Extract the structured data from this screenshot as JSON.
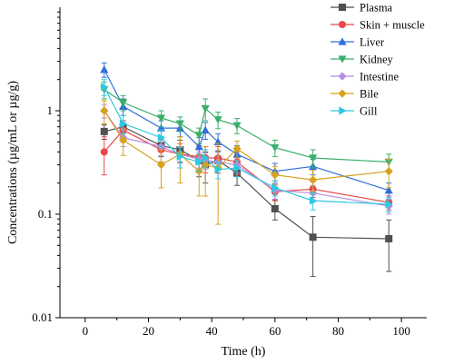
{
  "chart_data": {
    "type": "line",
    "title": "",
    "xlabel": "Time (h)",
    "ylabel": "Concentrations (µg/mL or µg/g)",
    "xlim": [
      -8,
      108
    ],
    "ylim": [
      0.01,
      10
    ],
    "yscale": "log",
    "x_ticks": [
      0,
      20,
      40,
      60,
      80,
      100
    ],
    "x_tick_labels": [
      "0",
      "20",
      "40",
      "60",
      "80",
      "100"
    ],
    "y_ticks": [
      0.01,
      0.1,
      1
    ],
    "y_tick_labels": [
      "0.01",
      "0.1",
      "1"
    ],
    "grid": false,
    "legend_position": "top-right",
    "series": [
      {
        "name": "Plasma",
        "color": "#505050",
        "marker": "square",
        "x": [
          6,
          12,
          24,
          30,
          36,
          38,
          42,
          48,
          60,
          72,
          96
        ],
        "y": [
          0.63,
          0.7,
          0.46,
          0.42,
          0.33,
          0.3,
          0.33,
          0.25,
          0.113,
          0.06,
          0.058
        ],
        "err": [
          0.1,
          0.1,
          0.1,
          0.1,
          0.1,
          0.1,
          0.08,
          0.06,
          0.025,
          0.035,
          0.03
        ]
      },
      {
        "name": "Skin + muscle",
        "color": "#e8484a",
        "marker": "circle",
        "x": [
          6,
          12,
          24,
          30,
          36,
          38,
          42,
          48,
          60,
          72,
          96
        ],
        "y": [
          0.4,
          0.65,
          0.42,
          0.38,
          0.36,
          0.35,
          0.35,
          0.32,
          0.165,
          0.175,
          0.13
        ],
        "err": [
          0.16,
          0.15,
          0.1,
          0.1,
          0.1,
          0.1,
          0.1,
          0.08,
          0.03,
          0.03,
          0.02
        ]
      },
      {
        "name": "Liver",
        "color": "#2f6fdd",
        "marker": "triangle-up",
        "x": [
          6,
          12,
          24,
          30,
          36,
          38,
          42,
          48,
          60,
          72,
          96
        ],
        "y": [
          2.5,
          1.1,
          0.68,
          0.68,
          0.45,
          0.65,
          0.5,
          0.38,
          0.26,
          0.29,
          0.17
        ],
        "err": [
          0.4,
          0.2,
          0.12,
          0.12,
          0.1,
          0.12,
          0.1,
          0.08,
          0.05,
          0.05,
          0.03
        ]
      },
      {
        "name": "Kidney",
        "color": "#3aaf6a",
        "marker": "triangle-down",
        "x": [
          6,
          12,
          24,
          30,
          36,
          38,
          42,
          48,
          60,
          72,
          96
        ],
        "y": [
          1.6,
          1.2,
          0.85,
          0.75,
          0.58,
          1.05,
          0.82,
          0.72,
          0.44,
          0.35,
          0.32
        ],
        "err": [
          0.3,
          0.2,
          0.15,
          0.12,
          0.1,
          0.25,
          0.15,
          0.12,
          0.08,
          0.07,
          0.06
        ]
      },
      {
        "name": "Intestine",
        "color": "#b98ee0",
        "marker": "diamond",
        "x": [
          6,
          12,
          24,
          30,
          36,
          38,
          42,
          48,
          60,
          72,
          96
        ],
        "y": [
          1.0,
          0.55,
          0.45,
          0.38,
          0.34,
          0.33,
          0.32,
          0.3,
          0.17,
          0.16,
          0.12
        ],
        "err": [
          0.15,
          0.1,
          0.08,
          0.07,
          0.06,
          0.06,
          0.05,
          0.05,
          0.03,
          0.03,
          0.02
        ]
      },
      {
        "name": "Bile",
        "color": "#d6a21e",
        "marker": "diamond",
        "x": [
          6,
          12,
          24,
          30,
          36,
          38,
          42,
          48,
          60,
          72,
          96
        ],
        "y": [
          1.0,
          0.52,
          0.3,
          0.38,
          0.26,
          0.3,
          0.28,
          0.43,
          0.24,
          0.215,
          0.26
        ],
        "err": [
          0.25,
          0.15,
          0.12,
          0.18,
          0.11,
          0.15,
          0.2,
          0.08,
          0.05,
          0.05,
          0.08
        ]
      },
      {
        "name": "Gill",
        "color": "#2ec8e0",
        "marker": "triangle-right",
        "x": [
          6,
          12,
          24,
          30,
          36,
          38,
          42,
          48,
          60,
          72,
          96
        ],
        "y": [
          1.7,
          0.75,
          0.55,
          0.36,
          0.32,
          0.35,
          0.27,
          0.28,
          0.18,
          0.135,
          0.125
        ],
        "err": [
          0.3,
          0.15,
          0.1,
          0.08,
          0.06,
          0.07,
          0.05,
          0.05,
          0.03,
          0.025,
          0.02
        ]
      }
    ]
  }
}
